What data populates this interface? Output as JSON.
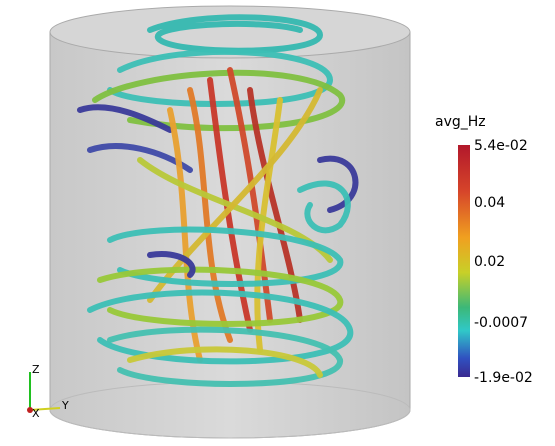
{
  "colorbar": {
    "title": "avg_Hz",
    "labels": [
      "5.4e-02",
      "0.04",
      "0.02",
      "-0.0007",
      "-1.9e-02"
    ]
  },
  "axes": {
    "z": "Z",
    "x": "X",
    "y": "Y"
  }
}
